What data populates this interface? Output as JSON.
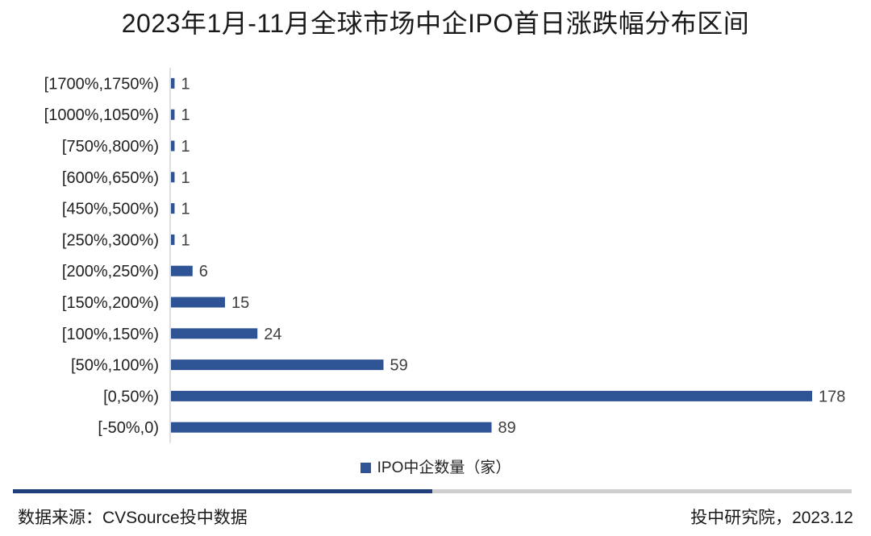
{
  "chart_data": {
    "type": "bar",
    "orientation": "horizontal",
    "title": "2023年1月-11月全球市场中企IPO首日涨跌幅分布区间",
    "categories": [
      "[1700%,1750%)",
      "[1000%,1050%)",
      "[750%,800%)",
      "[600%,650%)",
      "[450%,500%)",
      "[250%,300%)",
      "[200%,250%)",
      "[150%,200%)",
      "[100%,150%)",
      "[50%,100%)",
      "[0,50%)",
      "[-50%,0)"
    ],
    "series": [
      {
        "name": "IPO中企数量（家）",
        "values": [
          1,
          1,
          1,
          1,
          1,
          1,
          6,
          15,
          24,
          59,
          178,
          89
        ],
        "color": "#2e5496"
      }
    ],
    "xlim": [
      0,
      178
    ],
    "grid": false,
    "legend_position": "bottom"
  },
  "footer": {
    "source": "数据来源：CVSource投中数据",
    "credit": "投中研究院，2023.12"
  }
}
